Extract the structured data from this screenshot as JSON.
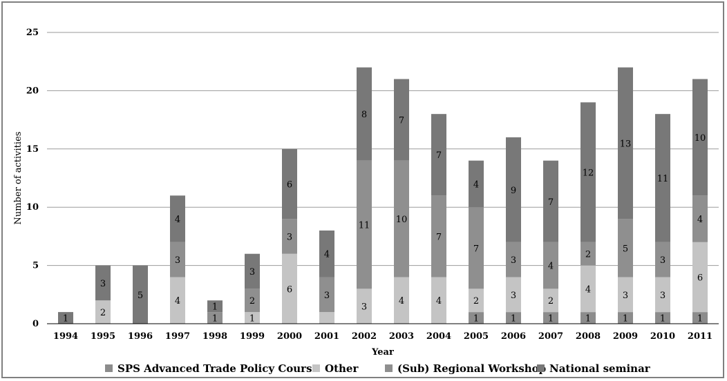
{
  "chart_data": {
    "type": "bar",
    "stacked": true,
    "categories": [
      "1994",
      "1995",
      "1996",
      "1997",
      "1998",
      "1999",
      "2000",
      "2001",
      "2002",
      "2003",
      "2004",
      "2005",
      "2006",
      "2007",
      "2008",
      "2009",
      "2010",
      "2011"
    ],
    "series": [
      {
        "name": "SPS Advanced Trade Policy Course",
        "color": "#8c8c8c",
        "values": [
          0,
          0,
          0,
          0,
          0,
          0,
          0,
          0,
          0,
          0,
          0,
          1,
          1,
          1,
          1,
          1,
          1,
          1
        ],
        "labels": [
          "",
          "",
          "",
          "",
          "",
          "",
          "",
          "",
          "",
          "",
          "",
          "1",
          "1",
          "1",
          "1",
          "1",
          "1",
          "1"
        ]
      },
      {
        "name": "Other",
        "color": "#c4c4c4",
        "values": [
          0,
          2,
          0,
          4,
          0,
          1,
          6,
          1,
          3,
          4,
          4,
          2,
          3,
          2,
          4,
          3,
          3,
          6
        ],
        "labels": [
          "",
          "2",
          "",
          "4",
          "",
          "1",
          "6",
          "",
          "3",
          "4",
          "4",
          "2",
          "3",
          "2",
          "4",
          "3",
          "3",
          "6"
        ]
      },
      {
        "name": "(Sub) Regional Workshop",
        "color": "#8f8f8f",
        "values": [
          0,
          0,
          0,
          3,
          1,
          2,
          3,
          3,
          11,
          10,
          7,
          7,
          3,
          4,
          2,
          5,
          3,
          4
        ],
        "labels": [
          "",
          "",
          "",
          "3",
          "1",
          "2",
          "3",
          "3",
          "11",
          "10",
          "7",
          "7",
          "3",
          "4",
          "2",
          "5",
          "3",
          "4"
        ]
      },
      {
        "name": "National seminar",
        "color": "#787878",
        "values": [
          1,
          3,
          5,
          4,
          1,
          3,
          6,
          4,
          8,
          7,
          7,
          4,
          9,
          7,
          12,
          13,
          11,
          10
        ],
        "labels": [
          "1",
          "3",
          "5",
          "4",
          "1",
          "3",
          "6",
          "4",
          "8",
          "7",
          "7",
          "4",
          "9",
          "7",
          "12",
          "13",
          "11",
          "10"
        ]
      }
    ],
    "title": "",
    "xlabel": "Year",
    "ylabel": "Number of activities",
    "ylim": [
      0,
      25
    ],
    "yticks": [
      "0",
      "5",
      "10",
      "15",
      "20",
      "25"
    ],
    "grid": true,
    "legend_position": "bottom"
  }
}
